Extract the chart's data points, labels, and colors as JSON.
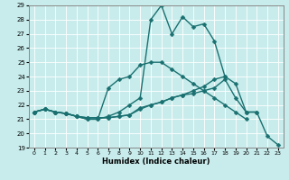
{
  "xlabel": "Humidex (Indice chaleur)",
  "bg_color": "#c8ecec",
  "grid_color": "#ffffff",
  "line_color": "#1a7070",
  "line_width": 1.0,
  "marker": "D",
  "marker_size": 2.5,
  "xlim": [
    -0.5,
    23.5
  ],
  "ylim": [
    19,
    29
  ],
  "yticks": [
    19,
    20,
    21,
    22,
    23,
    24,
    25,
    26,
    27,
    28,
    29
  ],
  "xticks": [
    0,
    1,
    2,
    3,
    4,
    5,
    6,
    7,
    8,
    9,
    10,
    11,
    12,
    13,
    14,
    15,
    16,
    17,
    18,
    19,
    20,
    21,
    22,
    23
  ],
  "lines": [
    {
      "x": [
        0,
        1,
        2,
        3,
        4,
        5,
        6,
        7,
        8,
        9,
        10,
        11,
        12,
        13,
        14,
        15,
        16,
        17,
        18,
        19,
        20,
        21,
        22,
        23
      ],
      "y": [
        21.5,
        21.7,
        21.5,
        21.4,
        21.2,
        21.1,
        21.1,
        21.1,
        21.2,
        21.3,
        21.7,
        22.0,
        22.2,
        22.5,
        22.7,
        23.0,
        23.3,
        23.8,
        24.0,
        23.5,
        21.5,
        21.5,
        19.8,
        19.2
      ]
    },
    {
      "x": [
        0,
        1,
        2,
        3,
        4,
        5,
        6,
        7,
        8,
        9,
        10,
        11,
        12,
        13,
        14,
        15,
        16,
        17,
        18,
        19,
        20,
        21
      ],
      "y": [
        21.5,
        21.7,
        21.5,
        21.4,
        21.2,
        21.1,
        21.1,
        21.1,
        21.2,
        21.3,
        21.8,
        22.0,
        22.2,
        22.5,
        22.7,
        22.8,
        23.0,
        23.2,
        23.8,
        22.5,
        21.5,
        21.5
      ]
    },
    {
      "x": [
        0,
        1,
        2,
        3,
        4,
        5,
        6,
        7,
        8,
        9,
        10,
        11,
        12,
        13,
        14,
        15,
        16,
        17,
        18,
        19,
        20
      ],
      "y": [
        21.5,
        21.7,
        21.5,
        21.4,
        21.2,
        21.0,
        21.0,
        23.2,
        23.8,
        24.0,
        24.8,
        25.0,
        25.0,
        24.5,
        24.0,
        23.5,
        23.0,
        22.5,
        22.0,
        21.5,
        21.0
      ]
    },
    {
      "x": [
        0,
        1,
        2,
        3,
        4,
        5,
        6,
        7,
        8,
        9,
        10,
        11,
        12,
        13,
        14,
        15,
        16,
        17,
        18
      ],
      "y": [
        21.5,
        21.7,
        21.5,
        21.4,
        21.2,
        21.0,
        21.0,
        21.2,
        21.5,
        22.0,
        22.5,
        28.0,
        29.0,
        27.0,
        28.2,
        27.5,
        27.7,
        26.5,
        24.0
      ]
    }
  ]
}
